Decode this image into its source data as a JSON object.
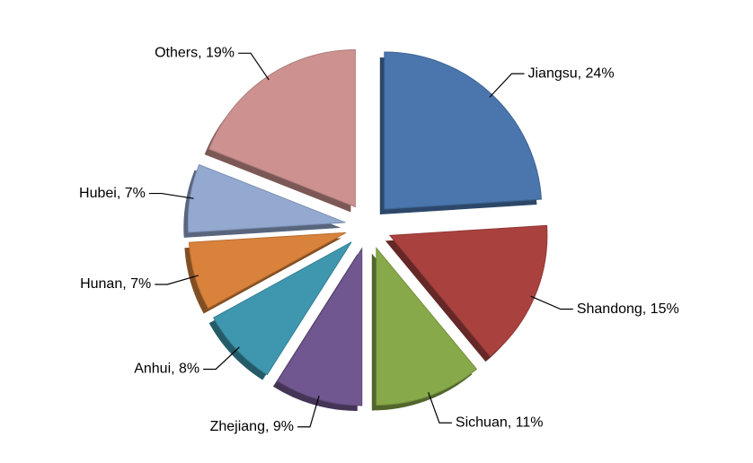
{
  "chart_data": {
    "type": "pie",
    "values": [
      24,
      15,
      11,
      9,
      8,
      7,
      7,
      19
    ],
    "value_labels": [
      "Jiangsu, 24%",
      "Shandong, 15%",
      "Sichuan, 11%",
      "Zhejiang, 9%",
      "Anhui, 8%",
      "Hunan, 7%",
      "Hubei, 7%",
      "Others, 19%"
    ],
    "colors": [
      "#4a76ad",
      "#a9423f",
      "#87a94a",
      "#71578f",
      "#3e97ae",
      "#d9823b",
      "#93a9d0",
      "#cd9290"
    ]
  }
}
